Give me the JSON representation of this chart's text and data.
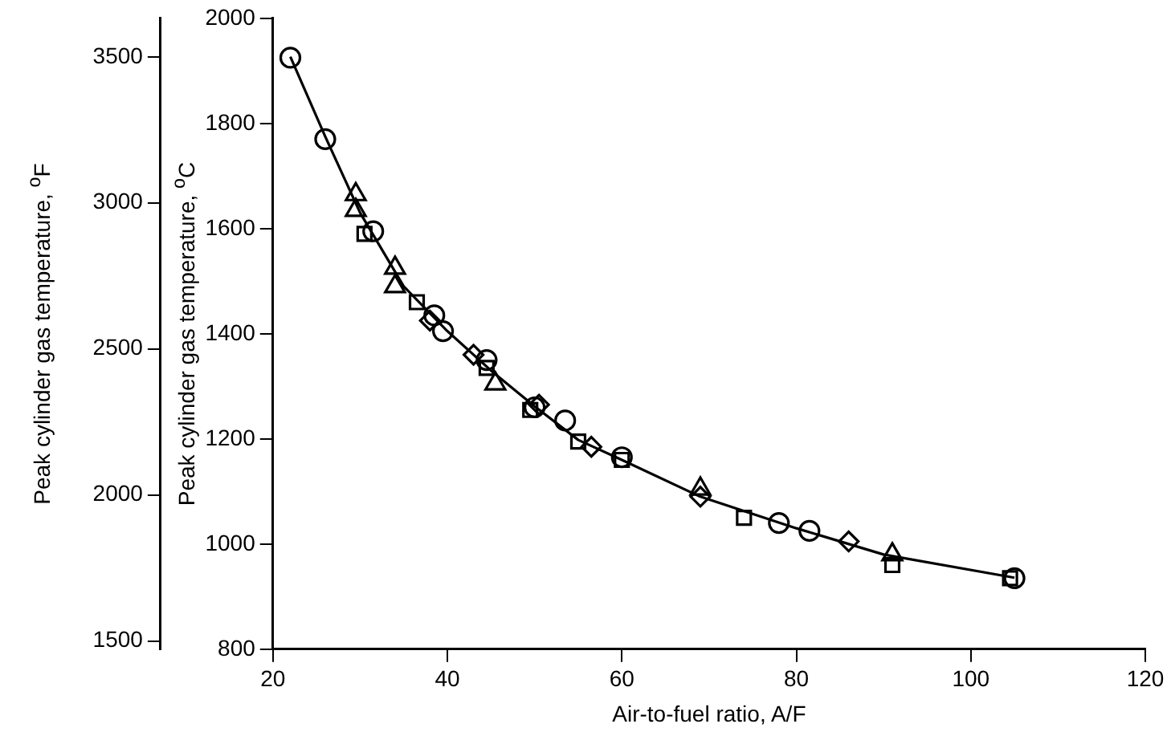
{
  "chart_data": {
    "type": "scatter",
    "xlabel": "Air-to-fuel ratio, A/F",
    "ylabel": "Peak cylinder gas temperature, $^{o}$C",
    "y2label": "Peak cylinder gas temperature, $^{o}$F",
    "xlim": [
      20,
      120
    ],
    "xticks": [
      20,
      40,
      60,
      80,
      100,
      120
    ],
    "ylim": [
      800,
      2000
    ],
    "yticks": [
      800,
      1000,
      1200,
      1400,
      1600,
      1800,
      2000
    ],
    "y2lim": [
      1472,
      3632
    ],
    "y2ticks": [
      1500,
      2000,
      2500,
      3000,
      3500
    ],
    "grid": false,
    "legend": false,
    "series": [
      {
        "type": "line",
        "color": "#000000",
        "marker": "none",
        "line_style": "solid",
        "x": [
          22,
          26,
          30,
          35,
          40,
          45,
          50,
          55,
          60,
          69,
          80,
          90,
          105
        ],
        "values": [
          1927,
          1775,
          1630,
          1490,
          1405,
          1330,
          1262,
          1198,
          1160,
          1090,
          1030,
          980,
          936
        ]
      },
      {
        "color": "#000000",
        "marker": "circle",
        "x": [
          22,
          26,
          31.5,
          38.5,
          39.5,
          44.5,
          50,
          53.5,
          60,
          78,
          81.5,
          105
        ],
        "values": [
          1925,
          1770,
          1595,
          1435,
          1405,
          1350,
          1260,
          1235,
          1165,
          1040,
          1025,
          935
        ]
      },
      {
        "color": "#000000",
        "marker": "triangle",
        "x": [
          29.5,
          29.5,
          34,
          34,
          45.5,
          69,
          91
        ],
        "values": [
          1665,
          1635,
          1525,
          1490,
          1305,
          1105,
          980
        ]
      },
      {
        "color": "#000000",
        "marker": "square",
        "x": [
          30.5,
          36.5,
          44.5,
          49.5,
          55,
          60,
          74,
          91,
          104.5
        ],
        "values": [
          1590,
          1460,
          1335,
          1255,
          1195,
          1160,
          1050,
          960,
          935
        ]
      },
      {
        "color": "#000000",
        "marker": "diamond",
        "x": [
          38,
          43,
          50.5,
          56.5,
          69,
          86
        ],
        "values": [
          1425,
          1360,
          1265,
          1185,
          1090,
          1005
        ]
      }
    ]
  }
}
